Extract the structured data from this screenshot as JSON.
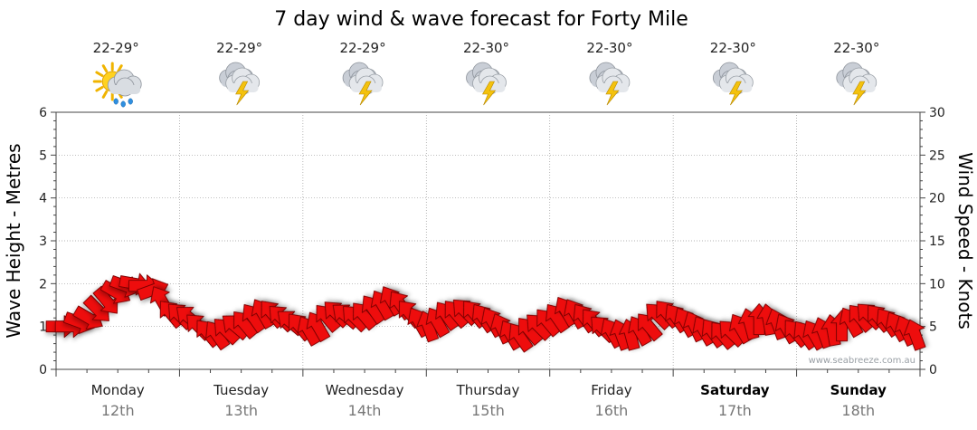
{
  "chart_data": {
    "type": "line",
    "title": "7 day wind & wave forecast for Forty Mile",
    "ylabel": "Wave Height - Metres",
    "y2label": "Wind Speed - Knots",
    "ylim": [
      0,
      6
    ],
    "y2lim": [
      0,
      30
    ],
    "yticks": [
      "0",
      "1",
      "2",
      "3",
      "4",
      "5",
      "6"
    ],
    "y2ticks": [
      "0",
      "5",
      "10",
      "15",
      "20",
      "25",
      "30"
    ],
    "credit": "www.seabreeze.com.au",
    "days": [
      {
        "name": "Monday",
        "date": "12th",
        "temp": "22-29°",
        "icon": "sun-cloud-rain-icon",
        "bold": false
      },
      {
        "name": "Tuesday",
        "date": "13th",
        "temp": "22-29°",
        "icon": "storm-icon",
        "bold": false
      },
      {
        "name": "Wednesday",
        "date": "14th",
        "temp": "22-29°",
        "icon": "storm-icon",
        "bold": false
      },
      {
        "name": "Thursday",
        "date": "15th",
        "temp": "22-30°",
        "icon": "storm-icon",
        "bold": false
      },
      {
        "name": "Friday",
        "date": "16th",
        "temp": "22-30°",
        "icon": "storm-icon",
        "bold": false
      },
      {
        "name": "Saturday",
        "date": "17th",
        "temp": "22-30°",
        "icon": "storm-icon",
        "bold": true
      },
      {
        "name": "Sunday",
        "date": "18th",
        "temp": "22-30°",
        "icon": "storm-icon",
        "bold": true
      }
    ],
    "series": [
      {
        "kind": "wind-arrows",
        "color": "#ee1111",
        "wave_height_m": [
          1.0,
          1.0,
          1.1,
          1.2,
          1.4,
          1.6,
          1.8,
          1.95,
          2.0,
          1.95,
          1.85,
          1.6,
          1.3,
          1.25,
          1.2,
          1.0,
          0.85,
          0.8,
          0.9,
          1.0,
          1.05,
          1.2,
          1.3,
          1.3,
          1.2,
          1.1,
          1.0,
          0.9,
          1.0,
          1.2,
          1.3,
          1.25,
          1.2,
          1.25,
          1.4,
          1.5,
          1.6,
          1.5,
          1.3,
          1.1,
          1.0,
          1.1,
          1.25,
          1.3,
          1.35,
          1.3,
          1.2,
          1.1,
          0.95,
          0.8,
          0.75,
          0.9,
          1.0,
          1.1,
          1.2,
          1.35,
          1.3,
          1.2,
          1.1,
          0.95,
          0.85,
          0.8,
          0.8,
          0.9,
          1.0,
          1.25,
          1.3,
          1.2,
          1.1,
          1.0,
          0.9,
          0.85,
          0.8,
          0.85,
          0.95,
          1.05,
          1.15,
          1.15,
          1.05,
          0.95,
          0.85,
          0.8,
          0.8,
          0.85,
          0.9,
          1.0,
          1.1,
          1.2,
          1.25,
          1.2,
          1.1,
          1.0,
          0.9,
          0.8
        ],
        "wind_dir_deg": [
          270,
          270,
          290,
          300,
          315,
          320,
          300,
          290,
          280,
          270,
          250,
          150,
          140,
          135,
          130,
          135,
          140,
          145,
          135,
          130,
          140,
          145,
          150,
          140,
          135,
          130,
          140,
          150,
          150,
          140,
          135,
          130,
          135,
          140,
          145,
          150,
          150,
          145,
          140,
          150,
          160,
          150,
          145,
          140,
          135,
          140,
          145,
          150,
          155,
          150,
          145,
          140,
          135,
          140,
          145,
          150,
          150,
          145,
          140,
          135,
          150,
          160,
          165,
          150,
          140,
          135,
          140,
          145,
          150,
          155,
          150,
          145,
          140,
          135,
          150,
          165,
          180,
          170,
          160,
          150,
          140,
          145,
          150,
          160,
          170,
          180,
          150,
          140,
          135,
          140,
          145,
          150,
          155,
          160
        ]
      }
    ]
  }
}
